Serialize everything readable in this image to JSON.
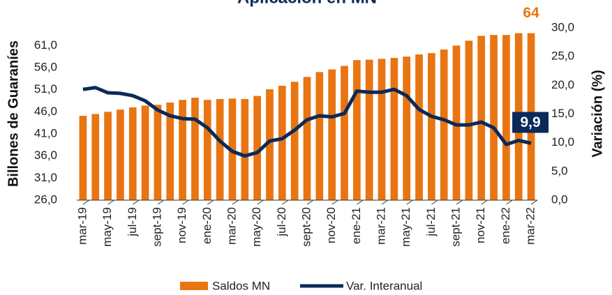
{
  "chart_data": {
    "type": "bar_line",
    "title": "Aplicación en MN",
    "y_label": "Billones de Guaraníes",
    "y2_label": "Variación (%)",
    "categories": [
      "mar-19",
      null,
      "may-19",
      null,
      "jul-19",
      null,
      "sept-19",
      null,
      "nov-19",
      null,
      "ene-20",
      null,
      "mar-20",
      null,
      "may-20",
      null,
      "jul-20",
      null,
      "sept-20",
      null,
      "nov-20",
      null,
      "ene-21",
      null,
      "mar-21",
      null,
      "may-21",
      null,
      "jul-21",
      null,
      "sept-21",
      null,
      "nov-21",
      null,
      "ene-22",
      null,
      "mar-22"
    ],
    "series": [
      {
        "name": "Saldos MN",
        "type": "bar",
        "color": "#e87511",
        "values": [
          45.1,
          45.5,
          46.0,
          46.5,
          47.0,
          47.4,
          47.6,
          48.1,
          48.7,
          49.2,
          48.7,
          48.9,
          49.0,
          48.9,
          49.6,
          51.1,
          51.9,
          52.8,
          53.9,
          55.0,
          55.6,
          56.4,
          57.7,
          57.8,
          58.0,
          58.2,
          58.5,
          59.0,
          59.3,
          60.1,
          61.0,
          62.1,
          63.2,
          63.4,
          63.4,
          63.8,
          63.8
        ],
        "value_labels": [
          null,
          null,
          null,
          null,
          null,
          null,
          null,
          null,
          null,
          null,
          null,
          null,
          null,
          null,
          null,
          null,
          null,
          null,
          null,
          null,
          null,
          null,
          null,
          null,
          null,
          null,
          null,
          null,
          null,
          null,
          null,
          null,
          null,
          null,
          null,
          null,
          "64"
        ]
      },
      {
        "name": "Var. Interanual",
        "type": "line",
        "axis": "y2",
        "color": "#0b2a5a",
        "values": [
          19.3,
          19.6,
          18.7,
          18.6,
          18.2,
          17.3,
          15.7,
          14.7,
          14.2,
          14.1,
          12.6,
          10.3,
          8.5,
          7.7,
          8.3,
          10.3,
          10.7,
          12.2,
          14.0,
          14.7,
          14.5,
          15.1,
          19.0,
          18.8,
          18.8,
          19.3,
          18.2,
          15.8,
          14.6,
          14.0,
          13.1,
          13.1,
          13.6,
          12.6,
          9.7,
          10.4,
          9.9
        ],
        "value_labels": [
          null,
          null,
          null,
          null,
          null,
          null,
          null,
          null,
          null,
          null,
          null,
          null,
          null,
          null,
          null,
          null,
          null,
          null,
          null,
          null,
          null,
          null,
          null,
          null,
          null,
          null,
          null,
          null,
          null,
          null,
          null,
          null,
          null,
          null,
          null,
          null,
          "9,9"
        ]
      }
    ],
    "ylim": [
      26,
      65
    ],
    "yticks": [
      {
        "value": 26,
        "label": "26,0"
      },
      {
        "value": 31,
        "label": "31,0"
      },
      {
        "value": 36,
        "label": "36,0"
      },
      {
        "value": 41,
        "label": "41,0"
      },
      {
        "value": 46,
        "label": "46,0"
      },
      {
        "value": 51,
        "label": "51,0"
      },
      {
        "value": 56,
        "label": "56,0"
      },
      {
        "value": 61,
        "label": "61,0"
      }
    ],
    "y2lim": [
      0,
      30
    ],
    "y2ticks": [
      {
        "value": 0,
        "label": "0,0"
      },
      {
        "value": 5,
        "label": "5,0"
      },
      {
        "value": 10,
        "label": "10,0"
      },
      {
        "value": 15,
        "label": "15,0"
      },
      {
        "value": 20,
        "label": "20,0"
      },
      {
        "value": 25,
        "label": "25,0"
      },
      {
        "value": 30,
        "label": "30,0"
      }
    ],
    "grid": false,
    "legend": "bottom"
  }
}
